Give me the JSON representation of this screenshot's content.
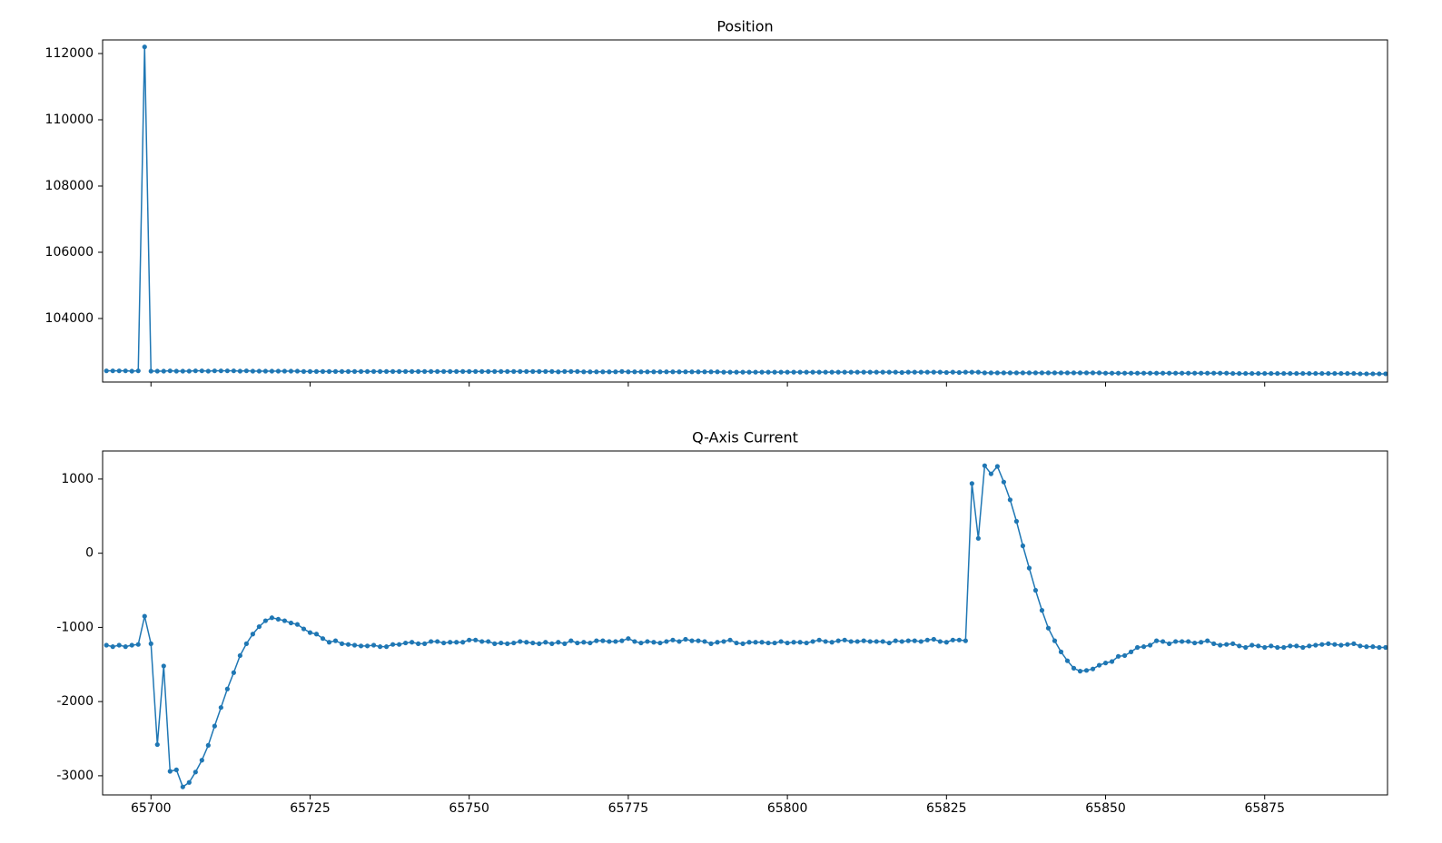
{
  "chart_data": [
    {
      "type": "line",
      "title": "Position",
      "x": [
        65693,
        65694,
        65695,
        65696,
        65697,
        65698,
        65699,
        65700,
        65701,
        65702,
        65703,
        65704,
        65705,
        65706,
        65707,
        65708,
        65709,
        65710,
        65711,
        65712,
        65713,
        65714,
        65715,
        65716,
        65717,
        65718,
        65719,
        65720,
        65721,
        65722,
        65723,
        65724,
        65725,
        65726,
        65727,
        65728,
        65729,
        65730,
        65731,
        65732,
        65733,
        65734,
        65735,
        65736,
        65737,
        65738,
        65739,
        65740,
        65741,
        65742,
        65743,
        65744,
        65745,
        65746,
        65747,
        65748,
        65749,
        65750,
        65751,
        65752,
        65753,
        65754,
        65755,
        65756,
        65757,
        65758,
        65759,
        65760,
        65761,
        65762,
        65763,
        65764,
        65765,
        65766,
        65767,
        65768,
        65769,
        65770,
        65771,
        65772,
        65773,
        65774,
        65775,
        65776,
        65777,
        65778,
        65779,
        65780,
        65781,
        65782,
        65783,
        65784,
        65785,
        65786,
        65787,
        65788,
        65789,
        65790,
        65791,
        65792,
        65793,
        65794,
        65795,
        65796,
        65797,
        65798,
        65799,
        65800,
        65801,
        65802,
        65803,
        65804,
        65805,
        65806,
        65807,
        65808,
        65809,
        65810,
        65811,
        65812,
        65813,
        65814,
        65815,
        65816,
        65817,
        65818,
        65819,
        65820,
        65821,
        65822,
        65823,
        65824,
        65825,
        65826,
        65827,
        65828,
        65829,
        65830,
        65831,
        65832,
        65833,
        65834,
        65835,
        65836,
        65837,
        65838,
        65839,
        65840,
        65841,
        65842,
        65843,
        65844,
        65845,
        65846,
        65847,
        65848,
        65849,
        65850,
        65851,
        65852,
        65853,
        65854,
        65855,
        65856,
        65857,
        65858,
        65859,
        65860,
        65861,
        65862,
        65863,
        65864,
        65865,
        65866,
        65867,
        65868,
        65869,
        65870,
        65871,
        65872,
        65873,
        65874,
        65875,
        65876,
        65877,
        65878,
        65879,
        65880,
        65881,
        65882,
        65883,
        65884,
        65885,
        65886,
        65887,
        65888,
        65889,
        65890,
        65891,
        65892,
        65893,
        65894
      ],
      "series": [
        {
          "color": "#1f77b4",
          "values": [
            102420,
            102420,
            102420,
            102420,
            102410,
            102420,
            112200,
            102410,
            102410,
            102410,
            102420,
            102410,
            102410,
            102410,
            102420,
            102420,
            102410,
            102420,
            102420,
            102420,
            102420,
            102410,
            102420,
            102410,
            102410,
            102410,
            102410,
            102410,
            102410,
            102410,
            102410,
            102400,
            102400,
            102400,
            102400,
            102400,
            102400,
            102400,
            102400,
            102400,
            102400,
            102400,
            102400,
            102400,
            102400,
            102400,
            102400,
            102400,
            102400,
            102400,
            102400,
            102400,
            102400,
            102400,
            102400,
            102400,
            102400,
            102400,
            102400,
            102400,
            102400,
            102400,
            102400,
            102400,
            102400,
            102400,
            102400,
            102400,
            102400,
            102400,
            102400,
            102390,
            102400,
            102400,
            102400,
            102390,
            102390,
            102390,
            102390,
            102390,
            102390,
            102400,
            102390,
            102390,
            102390,
            102390,
            102390,
            102390,
            102390,
            102390,
            102390,
            102390,
            102390,
            102390,
            102390,
            102390,
            102390,
            102380,
            102380,
            102380,
            102380,
            102380,
            102380,
            102380,
            102380,
            102380,
            102380,
            102380,
            102380,
            102380,
            102380,
            102380,
            102380,
            102380,
            102380,
            102380,
            102380,
            102380,
            102380,
            102380,
            102380,
            102380,
            102380,
            102380,
            102380,
            102370,
            102380,
            102380,
            102380,
            102380,
            102380,
            102380,
            102370,
            102380,
            102370,
            102380,
            102380,
            102380,
            102360,
            102360,
            102360,
            102360,
            102360,
            102360,
            102360,
            102360,
            102360,
            102360,
            102360,
            102360,
            102360,
            102360,
            102360,
            102360,
            102360,
            102360,
            102360,
            102350,
            102350,
            102350,
            102350,
            102350,
            102350,
            102350,
            102350,
            102350,
            102350,
            102350,
            102350,
            102350,
            102350,
            102350,
            102350,
            102350,
            102350,
            102350,
            102350,
            102340,
            102340,
            102340,
            102340,
            102340,
            102340,
            102340,
            102340,
            102340,
            102340,
            102340,
            102340,
            102340,
            102340,
            102340,
            102340,
            102340,
            102340,
            102340,
            102340,
            102330,
            102330,
            102330,
            102330,
            102330
          ]
        }
      ],
      "xlim": [
        65692.4,
        65894.3
      ],
      "xticks": [
        65700,
        65725,
        65750,
        65775,
        65800,
        65825,
        65850,
        65875
      ],
      "ylim": [
        102082,
        112411
      ],
      "yticks": [
        104000,
        106000,
        108000,
        110000,
        112000
      ]
    },
    {
      "type": "line",
      "title": "Q-Axis Current",
      "x": [
        65693,
        65694,
        65695,
        65696,
        65697,
        65698,
        65699,
        65700,
        65701,
        65702,
        65703,
        65704,
        65705,
        65706,
        65707,
        65708,
        65709,
        65710,
        65711,
        65712,
        65713,
        65714,
        65715,
        65716,
        65717,
        65718,
        65719,
        65720,
        65721,
        65722,
        65723,
        65724,
        65725,
        65726,
        65727,
        65728,
        65729,
        65730,
        65731,
        65732,
        65733,
        65734,
        65735,
        65736,
        65737,
        65738,
        65739,
        65740,
        65741,
        65742,
        65743,
        65744,
        65745,
        65746,
        65747,
        65748,
        65749,
        65750,
        65751,
        65752,
        65753,
        65754,
        65755,
        65756,
        65757,
        65758,
        65759,
        65760,
        65761,
        65762,
        65763,
        65764,
        65765,
        65766,
        65767,
        65768,
        65769,
        65770,
        65771,
        65772,
        65773,
        65774,
        65775,
        65776,
        65777,
        65778,
        65779,
        65780,
        65781,
        65782,
        65783,
        65784,
        65785,
        65786,
        65787,
        65788,
        65789,
        65790,
        65791,
        65792,
        65793,
        65794,
        65795,
        65796,
        65797,
        65798,
        65799,
        65800,
        65801,
        65802,
        65803,
        65804,
        65805,
        65806,
        65807,
        65808,
        65809,
        65810,
        65811,
        65812,
        65813,
        65814,
        65815,
        65816,
        65817,
        65818,
        65819,
        65820,
        65821,
        65822,
        65823,
        65824,
        65825,
        65826,
        65827,
        65828,
        65829,
        65830,
        65831,
        65832,
        65833,
        65834,
        65835,
        65836,
        65837,
        65838,
        65839,
        65840,
        65841,
        65842,
        65843,
        65844,
        65845,
        65846,
        65847,
        65848,
        65849,
        65850,
        65851,
        65852,
        65853,
        65854,
        65855,
        65856,
        65857,
        65858,
        65859,
        65860,
        65861,
        65862,
        65863,
        65864,
        65865,
        65866,
        65867,
        65868,
        65869,
        65870,
        65871,
        65872,
        65873,
        65874,
        65875,
        65876,
        65877,
        65878,
        65879,
        65880,
        65881,
        65882,
        65883,
        65884,
        65885,
        65886,
        65887,
        65888,
        65889,
        65890,
        65891,
        65892,
        65893,
        65894
      ],
      "series": [
        {
          "color": "#1f77b4",
          "values": [
            -1240,
            -1260,
            -1240,
            -1260,
            -1240,
            -1230,
            -850,
            -1220,
            -2580,
            -1520,
            -2940,
            -2920,
            -3150,
            -3090,
            -2950,
            -2790,
            -2590,
            -2330,
            -2080,
            -1830,
            -1610,
            -1380,
            -1220,
            -1090,
            -990,
            -910,
            -870,
            -890,
            -910,
            -940,
            -960,
            -1020,
            -1070,
            -1090,
            -1150,
            -1200,
            -1180,
            -1220,
            -1230,
            -1240,
            -1250,
            -1250,
            -1240,
            -1260,
            -1260,
            -1230,
            -1230,
            -1210,
            -1200,
            -1220,
            -1220,
            -1190,
            -1190,
            -1210,
            -1200,
            -1200,
            -1200,
            -1170,
            -1170,
            -1190,
            -1190,
            -1220,
            -1210,
            -1220,
            -1210,
            -1190,
            -1200,
            -1210,
            -1220,
            -1200,
            -1220,
            -1200,
            -1220,
            -1180,
            -1210,
            -1200,
            -1210,
            -1180,
            -1180,
            -1190,
            -1190,
            -1180,
            -1150,
            -1190,
            -1210,
            -1190,
            -1200,
            -1210,
            -1190,
            -1170,
            -1190,
            -1160,
            -1180,
            -1180,
            -1190,
            -1220,
            -1200,
            -1190,
            -1170,
            -1210,
            -1220,
            -1200,
            -1200,
            -1200,
            -1210,
            -1210,
            -1190,
            -1210,
            -1200,
            -1200,
            -1210,
            -1190,
            -1170,
            -1190,
            -1200,
            -1180,
            -1170,
            -1190,
            -1190,
            -1180,
            -1190,
            -1190,
            -1190,
            -1210,
            -1180,
            -1190,
            -1180,
            -1180,
            -1190,
            -1170,
            -1160,
            -1190,
            -1200,
            -1170,
            -1170,
            -1180,
            940,
            200,
            1180,
            1070,
            1170,
            960,
            720,
            430,
            100,
            -200,
            -500,
            -770,
            -1010,
            -1180,
            -1330,
            -1450,
            -1550,
            -1590,
            -1580,
            -1560,
            -1510,
            -1480,
            -1460,
            -1390,
            -1380,
            -1330,
            -1270,
            -1260,
            -1240,
            -1180,
            -1190,
            -1220,
            -1190,
            -1190,
            -1190,
            -1210,
            -1200,
            -1180,
            -1220,
            -1240,
            -1230,
            -1220,
            -1250,
            -1270,
            -1240,
            -1250,
            -1270,
            -1250,
            -1270,
            -1270,
            -1250,
            -1250,
            -1270,
            -1250,
            -1240,
            -1230,
            -1220,
            -1230,
            -1240,
            -1230,
            -1220,
            -1250,
            -1260,
            -1260,
            -1270,
            -1270
          ]
        }
      ],
      "xlim": [
        65692.4,
        65894.3
      ],
      "xticks": [
        65700,
        65725,
        65750,
        65775,
        65800,
        65825,
        65850,
        65875
      ],
      "ylim": [
        -3258,
        1378
      ],
      "yticks": [
        -3000,
        -2000,
        -1000,
        0,
        1000
      ]
    }
  ]
}
